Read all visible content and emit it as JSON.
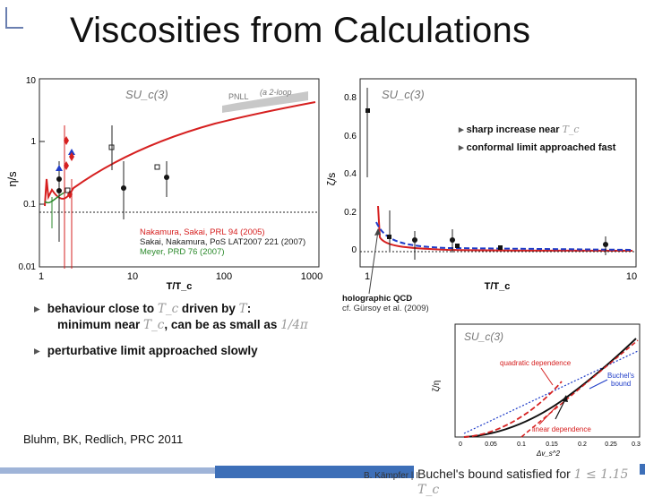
{
  "title": "Viscosities from Calculations",
  "left_plot": {
    "group_label": "SU_c(3)",
    "pnll_label": "PNLL",
    "pnll_paren": "(a 2-loop",
    "y_ticks": [
      "10",
      "1",
      "0.1",
      "0.01"
    ],
    "x_ticks": [
      "1",
      "10",
      "100",
      "1000"
    ],
    "ylabel": "η/s",
    "xlabel": "T/T_c",
    "legend": [
      {
        "text": "Nakamura, Sakai, PRL 94 (2005)",
        "color": "#d62020"
      },
      {
        "text": "Sakai, Nakamura, PoS LAT2007 221 (2007)",
        "color": "#222222"
      },
      {
        "text": "Meyer, PRD 76 (2007)",
        "color": "#2c8a2c"
      }
    ]
  },
  "right_plot": {
    "group_label": "SU_c(3)",
    "y_ticks": [
      "0.8",
      "0.6",
      "0.4",
      "0.2",
      "0"
    ],
    "x_ticks": [
      "1",
      "10"
    ],
    "ylabel": "ζ/s",
    "xlabel": "T/T_c",
    "bullets": [
      {
        "text": "sharp increase near ",
        "math": "T_c"
      },
      {
        "text": "conformal limit approached fast",
        "math": ""
      }
    ],
    "holo_title": "holographic QCD",
    "holo_ref": "cf. Gürsoy et al. (2009)"
  },
  "bullets": {
    "b1_line1": "behaviour close to ",
    "b1_math1": "T_c",
    "b1_mid": " driven by ",
    "b1_math2": "T",
    "b1_end": ":",
    "b2_line": "minimum near ",
    "b2_math": "T_c",
    "b2_end": ", can be as small as ",
    "b2_math2": "1/4π",
    "b3": "perturbative limit approached slowly"
  },
  "inset_plot": {
    "group_label": "SU_c(3)",
    "quadratic_label": "quadratic dependence",
    "linear_label": "linear dependence",
    "buchel_label_1": "Buchel's",
    "buchel_label_2": "bound",
    "x_ticks": [
      "0",
      "0.05",
      "0.1",
      "0.15",
      "0.2",
      "0.25",
      "0.3"
    ],
    "xlabel": "Δv_s^2",
    "ylabel": "ζ/η"
  },
  "citation": "Bluhm, BK, Redlich, PRC 2011",
  "footer": {
    "author": "B. Kämpfer | I",
    "note": "Buchel's bound satisfied for ",
    "note_math": "1 ≤ 1.15 T_c"
  },
  "colors": {
    "footer_blue": "#3d6fb8",
    "footer_light": "#9fb4d8",
    "red": "#d62020",
    "blue": "#1f3cc8",
    "green": "#2c8a2c"
  }
}
